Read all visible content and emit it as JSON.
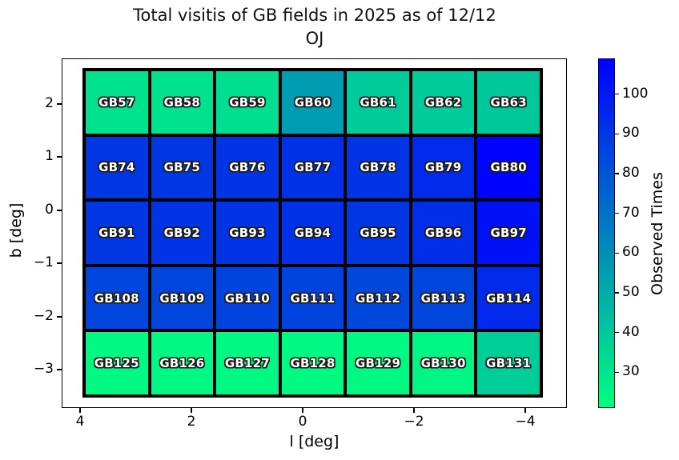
{
  "chart_data": {
    "type": "heatmap",
    "title": "Total visitis of GB fields in 2025 as of 12/12",
    "subtitle": "OJ",
    "xlabel": "l [deg]",
    "ylabel": "b [deg]",
    "x_ticks": [
      "4",
      "2",
      "0",
      "−2",
      "−4"
    ],
    "y_ticks": [
      "2",
      "1",
      "0",
      "−1",
      "−2",
      "−3"
    ],
    "grid_shape": {
      "rows": 5,
      "cols": 7
    },
    "colorbar": {
      "label": "Observed Times",
      "ticks": [
        100,
        90,
        80,
        70,
        60,
        50,
        40,
        30
      ],
      "vmin": 21,
      "vmax": 109,
      "cmap": "winter_r",
      "gradient_top": "#0000ff",
      "gradient_bottom": "#00ff80"
    },
    "rows": [
      [
        {
          "label": "GB57",
          "value": 31
        },
        {
          "label": "GB58",
          "value": 31
        },
        {
          "label": "GB59",
          "value": 32
        },
        {
          "label": "GB60",
          "value": 55
        },
        {
          "label": "GB61",
          "value": 39
        },
        {
          "label": "GB62",
          "value": 39
        },
        {
          "label": "GB63",
          "value": 40
        }
      ],
      [
        {
          "label": "GB74",
          "value": 90
        },
        {
          "label": "GB75",
          "value": 90
        },
        {
          "label": "GB76",
          "value": 91
        },
        {
          "label": "GB77",
          "value": 92
        },
        {
          "label": "GB78",
          "value": 91
        },
        {
          "label": "GB79",
          "value": 95
        },
        {
          "label": "GB80",
          "value": 108
        }
      ],
      [
        {
          "label": "GB91",
          "value": 90
        },
        {
          "label": "GB92",
          "value": 91
        },
        {
          "label": "GB93",
          "value": 91
        },
        {
          "label": "GB94",
          "value": 92
        },
        {
          "label": "GB95",
          "value": 90
        },
        {
          "label": "GB96",
          "value": 93
        },
        {
          "label": "GB97",
          "value": 103
        }
      ],
      [
        {
          "label": "GB108",
          "value": 85
        },
        {
          "label": "GB109",
          "value": 85
        },
        {
          "label": "GB110",
          "value": 86
        },
        {
          "label": "GB111",
          "value": 86
        },
        {
          "label": "GB112",
          "value": 84
        },
        {
          "label": "GB113",
          "value": 85
        },
        {
          "label": "GB114",
          "value": 95
        }
      ],
      [
        {
          "label": "GB125",
          "value": 23
        },
        {
          "label": "GB126",
          "value": 23
        },
        {
          "label": "GB127",
          "value": 23
        },
        {
          "label": "GB128",
          "value": 23
        },
        {
          "label": "GB129",
          "value": 23
        },
        {
          "label": "GB130",
          "value": 24
        },
        {
          "label": "GB131",
          "value": 38
        }
      ]
    ]
  }
}
